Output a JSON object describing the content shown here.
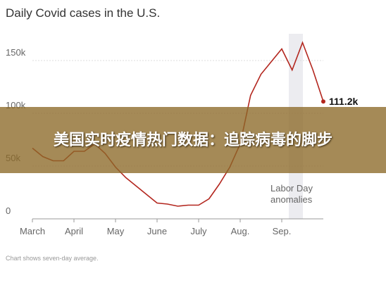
{
  "chart_data": {
    "type": "line",
    "title": "Daily Covid cases in the U.S.",
    "categories": [
      "March",
      null,
      null,
      null,
      "April",
      null,
      null,
      null,
      "May",
      null,
      null,
      null,
      "June",
      null,
      null,
      null,
      "July",
      null,
      null,
      null,
      "Aug.",
      null,
      null,
      null,
      "Sep.",
      null,
      null,
      null,
      null
    ],
    "series": [
      {
        "name": "Daily cases",
        "color": "#b3261e",
        "values": [
          67000,
          59000,
          55000,
          55000,
          64000,
          64000,
          71000,
          62000,
          49000,
          39000,
          31000,
          23000,
          15000,
          14000,
          12000,
          13000,
          13000,
          19000,
          33000,
          49000,
          71000,
          117000,
          137000,
          149000,
          161000,
          141000,
          167000,
          141000,
          111200
        ],
        "value_labels": [
          null,
          null,
          null,
          null,
          null,
          null,
          null,
          null,
          null,
          null,
          null,
          null,
          null,
          null,
          null,
          null,
          null,
          null,
          null,
          null,
          null,
          null,
          null,
          null,
          null,
          null,
          null,
          null,
          "111.2k"
        ]
      }
    ],
    "ylim": [
      0,
      175000
    ],
    "yticks": [
      0,
      {
        "value": 50000,
        "label": "50k"
      },
      {
        "value": 100000,
        "label": "100k"
      },
      {
        "value": 150000,
        "label": "150k"
      }
    ],
    "grid": true,
    "annotation": [
      "Labor Day",
      "anomalies"
    ],
    "footnote": "Chart shows seven-day average."
  },
  "banner": {
    "text": "美国实时疫情热门数据：追踪病毒的脚步"
  }
}
